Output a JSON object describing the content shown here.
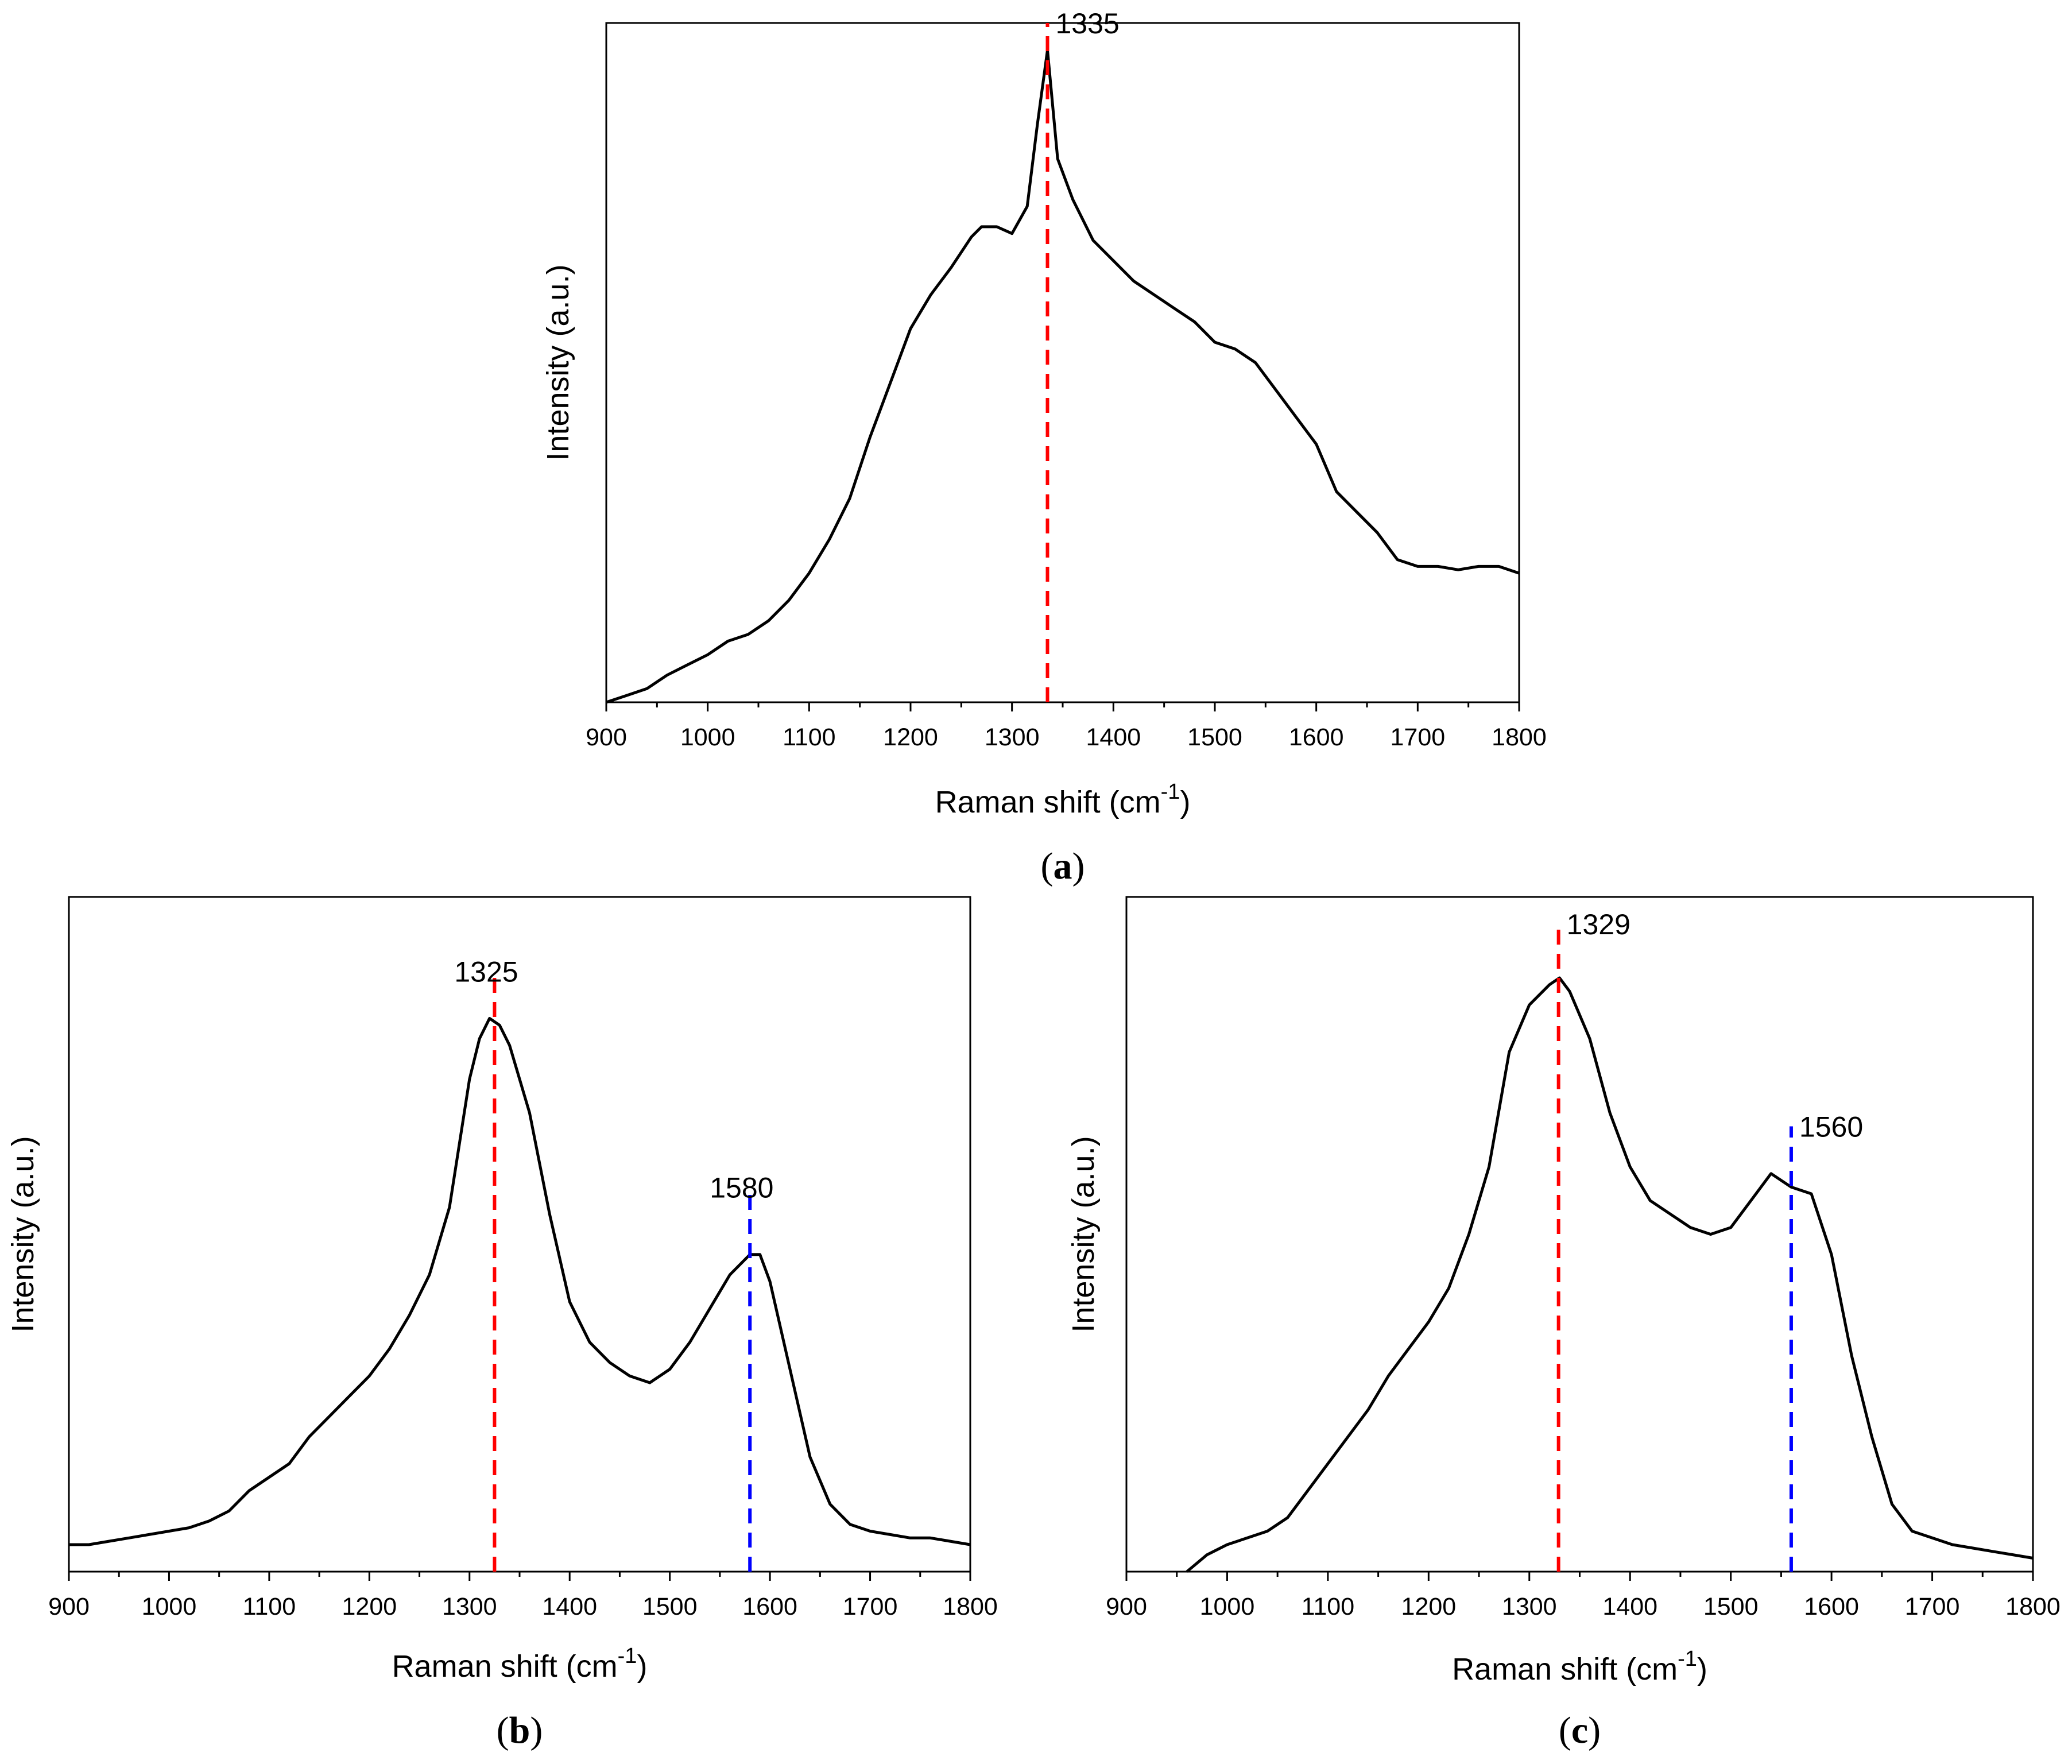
{
  "chart_data": [
    {
      "type": "line",
      "panel_label": "a",
      "xlabel": "Raman shift (cm",
      "xlabel_sup": "-1",
      "xlabel_tail": ")",
      "ylabel": "Intensity (a.u.)",
      "xlim": [
        900,
        1800
      ],
      "ylim": [
        0,
        1
      ],
      "xticks": [
        "900",
        "1000",
        "1100",
        "1200",
        "1300",
        "1400",
        "1500",
        "1600",
        "1700",
        "1800"
      ],
      "peaks": [
        {
          "x": 1335,
          "label": "1335",
          "color": "#ff0000",
          "top": 1.0
        }
      ],
      "series": [
        {
          "name": "spectrum",
          "color": "#000000",
          "points": [
            [
              900,
              0.0
            ],
            [
              920,
              0.01
            ],
            [
              940,
              0.02
            ],
            [
              960,
              0.04
            ],
            [
              980,
              0.055
            ],
            [
              1000,
              0.07
            ],
            [
              1020,
              0.09
            ],
            [
              1040,
              0.1
            ],
            [
              1060,
              0.12
            ],
            [
              1080,
              0.15
            ],
            [
              1100,
              0.19
            ],
            [
              1120,
              0.24
            ],
            [
              1140,
              0.3
            ],
            [
              1160,
              0.39
            ],
            [
              1180,
              0.47
            ],
            [
              1200,
              0.55
            ],
            [
              1220,
              0.6
            ],
            [
              1240,
              0.64
            ],
            [
              1260,
              0.685
            ],
            [
              1270,
              0.7
            ],
            [
              1285,
              0.7
            ],
            [
              1300,
              0.69
            ],
            [
              1315,
              0.73
            ],
            [
              1325,
              0.85
            ],
            [
              1335,
              0.96
            ],
            [
              1345,
              0.8
            ],
            [
              1360,
              0.74
            ],
            [
              1380,
              0.68
            ],
            [
              1400,
              0.65
            ],
            [
              1420,
              0.62
            ],
            [
              1440,
              0.6
            ],
            [
              1460,
              0.58
            ],
            [
              1480,
              0.56
            ],
            [
              1500,
              0.53
            ],
            [
              1520,
              0.52
            ],
            [
              1540,
              0.5
            ],
            [
              1560,
              0.46
            ],
            [
              1580,
              0.42
            ],
            [
              1600,
              0.38
            ],
            [
              1620,
              0.31
            ],
            [
              1640,
              0.28
            ],
            [
              1660,
              0.25
            ],
            [
              1680,
              0.21
            ],
            [
              1700,
              0.2
            ],
            [
              1720,
              0.2
            ],
            [
              1740,
              0.195
            ],
            [
              1760,
              0.2
            ],
            [
              1780,
              0.2
            ],
            [
              1800,
              0.19
            ]
          ]
        }
      ]
    },
    {
      "type": "line",
      "panel_label": "b",
      "xlabel": "Raman shift (cm",
      "xlabel_sup": "-1",
      "xlabel_tail": ")",
      "ylabel": "Intensity (a.u.)",
      "xlim": [
        900,
        1800
      ],
      "ylim": [
        0,
        1
      ],
      "xticks": [
        "900",
        "1000",
        "1100",
        "1200",
        "1300",
        "1400",
        "1500",
        "1600",
        "1700",
        "1800"
      ],
      "peaks": [
        {
          "x": 1325,
          "label": "1325",
          "color": "#ff0000",
          "top": 0.89
        },
        {
          "x": 1580,
          "label": "1580",
          "color": "#0000ff",
          "top": 0.57
        }
      ],
      "series": [
        {
          "name": "spectrum",
          "color": "#000000",
          "points": [
            [
              900,
              0.04
            ],
            [
              920,
              0.04
            ],
            [
              940,
              0.045
            ],
            [
              960,
              0.05
            ],
            [
              980,
              0.055
            ],
            [
              1000,
              0.06
            ],
            [
              1020,
              0.065
            ],
            [
              1040,
              0.075
            ],
            [
              1060,
              0.09
            ],
            [
              1080,
              0.12
            ],
            [
              1100,
              0.14
            ],
            [
              1120,
              0.16
            ],
            [
              1140,
              0.2
            ],
            [
              1160,
              0.23
            ],
            [
              1180,
              0.26
            ],
            [
              1200,
              0.29
            ],
            [
              1220,
              0.33
            ],
            [
              1240,
              0.38
            ],
            [
              1260,
              0.44
            ],
            [
              1280,
              0.54
            ],
            [
              1300,
              0.73
            ],
            [
              1310,
              0.79
            ],
            [
              1320,
              0.82
            ],
            [
              1330,
              0.81
            ],
            [
              1340,
              0.78
            ],
            [
              1360,
              0.68
            ],
            [
              1380,
              0.53
            ],
            [
              1400,
              0.4
            ],
            [
              1420,
              0.34
            ],
            [
              1440,
              0.31
            ],
            [
              1460,
              0.29
            ],
            [
              1480,
              0.28
            ],
            [
              1500,
              0.3
            ],
            [
              1520,
              0.34
            ],
            [
              1540,
              0.39
            ],
            [
              1560,
              0.44
            ],
            [
              1580,
              0.47
            ],
            [
              1590,
              0.47
            ],
            [
              1600,
              0.43
            ],
            [
              1620,
              0.3
            ],
            [
              1640,
              0.17
            ],
            [
              1660,
              0.1
            ],
            [
              1680,
              0.07
            ],
            [
              1700,
              0.06
            ],
            [
              1720,
              0.055
            ],
            [
              1740,
              0.05
            ],
            [
              1760,
              0.05
            ],
            [
              1780,
              0.045
            ],
            [
              1800,
              0.04
            ]
          ]
        }
      ]
    },
    {
      "type": "line",
      "panel_label": "c",
      "xlabel": "Raman shift (cm",
      "xlabel_sup": "-1",
      "xlabel_tail": ")",
      "ylabel": "Intensity (a.u.)",
      "xlim": [
        900,
        1800
      ],
      "ylim": [
        0,
        1
      ],
      "xticks": [
        "900",
        "1000",
        "1100",
        "1200",
        "1300",
        "1400",
        "1500",
        "1600",
        "1700",
        "1800"
      ],
      "peaks": [
        {
          "x": 1329,
          "label": "1329",
          "color": "#ff0000",
          "top": 0.96
        },
        {
          "x": 1560,
          "label": "1560",
          "color": "#0000ff",
          "top": 0.66
        }
      ],
      "series": [
        {
          "name": "spectrum",
          "color": "#000000",
          "points": [
            [
              960,
              0.0
            ],
            [
              980,
              0.025
            ],
            [
              1000,
              0.04
            ],
            [
              1020,
              0.05
            ],
            [
              1040,
              0.06
            ],
            [
              1060,
              0.08
            ],
            [
              1080,
              0.12
            ],
            [
              1100,
              0.16
            ],
            [
              1120,
              0.2
            ],
            [
              1140,
              0.24
            ],
            [
              1160,
              0.29
            ],
            [
              1180,
              0.33
            ],
            [
              1200,
              0.37
            ],
            [
              1220,
              0.42
            ],
            [
              1240,
              0.5
            ],
            [
              1260,
              0.6
            ],
            [
              1280,
              0.77
            ],
            [
              1300,
              0.84
            ],
            [
              1320,
              0.87
            ],
            [
              1330,
              0.88
            ],
            [
              1340,
              0.86
            ],
            [
              1360,
              0.79
            ],
            [
              1380,
              0.68
            ],
            [
              1400,
              0.6
            ],
            [
              1420,
              0.55
            ],
            [
              1440,
              0.53
            ],
            [
              1460,
              0.51
            ],
            [
              1480,
              0.5
            ],
            [
              1500,
              0.51
            ],
            [
              1520,
              0.55
            ],
            [
              1540,
              0.59
            ],
            [
              1560,
              0.57
            ],
            [
              1580,
              0.56
            ],
            [
              1600,
              0.47
            ],
            [
              1620,
              0.32
            ],
            [
              1640,
              0.2
            ],
            [
              1660,
              0.1
            ],
            [
              1680,
              0.06
            ],
            [
              1700,
              0.05
            ],
            [
              1720,
              0.04
            ],
            [
              1740,
              0.035
            ],
            [
              1760,
              0.03
            ],
            [
              1780,
              0.025
            ],
            [
              1800,
              0.02
            ]
          ]
        }
      ]
    }
  ]
}
